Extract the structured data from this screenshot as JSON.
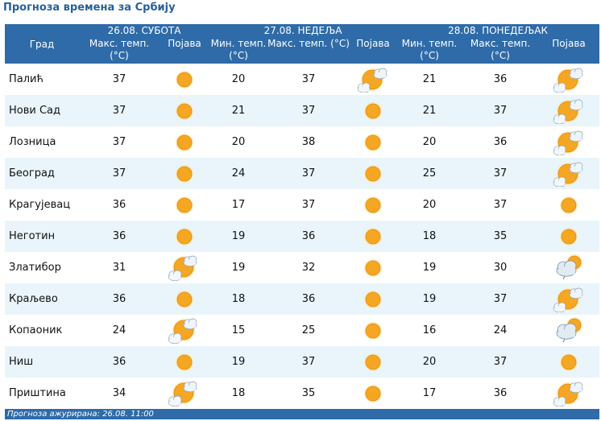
{
  "title": "Прогноза времена за Србију",
  "header": {
    "city_label": "Град",
    "days": [
      {
        "date": "26.08. СУБОТА",
        "cols": [
          "Макс. темп. (°C)",
          "Појава"
        ]
      },
      {
        "date": "27.08. НЕДЕЉА",
        "cols": [
          "Мин. темп. (°C)",
          "Макс. темп. (°C)",
          "Појава"
        ]
      },
      {
        "date": "28.08. ПОНЕДЕЉАК",
        "cols": [
          "Мин. темп. (°C)",
          "Макс. темп. (°C)",
          "Појава"
        ]
      }
    ]
  },
  "rows": [
    {
      "city": "Палић",
      "d1_max": "37",
      "d1_icon": "sun-icon",
      "d2_min": "20",
      "d2_max": "37",
      "d2_icon": "sun-behind-cloud-icon",
      "d3_min": "21",
      "d3_max": "36",
      "d3_icon": "sun-behind-cloud-icon"
    },
    {
      "city": "Нови Сад",
      "d1_max": "37",
      "d1_icon": "sun-icon",
      "d2_min": "21",
      "d2_max": "37",
      "d2_icon": "sun-icon",
      "d3_min": "21",
      "d3_max": "37",
      "d3_icon": "sun-behind-cloud-icon"
    },
    {
      "city": "Лозница",
      "d1_max": "37",
      "d1_icon": "sun-icon",
      "d2_min": "20",
      "d2_max": "38",
      "d2_icon": "sun-icon",
      "d3_min": "20",
      "d3_max": "36",
      "d3_icon": "sun-behind-cloud-icon"
    },
    {
      "city": "Београд",
      "d1_max": "37",
      "d1_icon": "sun-icon",
      "d2_min": "24",
      "d2_max": "37",
      "d2_icon": "sun-icon",
      "d3_min": "25",
      "d3_max": "37",
      "d3_icon": "sun-behind-cloud-icon"
    },
    {
      "city": "Крагујевац",
      "d1_max": "36",
      "d1_icon": "sun-icon",
      "d2_min": "17",
      "d2_max": "37",
      "d2_icon": "sun-icon",
      "d3_min": "20",
      "d3_max": "37",
      "d3_icon": "sun-icon"
    },
    {
      "city": "Неготин",
      "d1_max": "36",
      "d1_icon": "sun-icon",
      "d2_min": "19",
      "d2_max": "36",
      "d2_icon": "sun-icon",
      "d3_min": "18",
      "d3_max": "35",
      "d3_icon": "sun-icon"
    },
    {
      "city": "Златибор",
      "d1_max": "31",
      "d1_icon": "sun-cloud-icon",
      "d2_min": "19",
      "d2_max": "32",
      "d2_icon": "sun-icon",
      "d3_min": "19",
      "d3_max": "30",
      "d3_icon": "cloud-sun-rain-icon"
    },
    {
      "city": "Краљево",
      "d1_max": "36",
      "d1_icon": "sun-icon",
      "d2_min": "18",
      "d2_max": "36",
      "d2_icon": "sun-icon",
      "d3_min": "19",
      "d3_max": "37",
      "d3_icon": "sun-behind-cloud-icon"
    },
    {
      "city": "Копаоник",
      "d1_max": "24",
      "d1_icon": "sun-cloud-icon",
      "d2_min": "15",
      "d2_max": "25",
      "d2_icon": "sun-icon",
      "d3_min": "16",
      "d3_max": "24",
      "d3_icon": "cloud-sun-rain-icon"
    },
    {
      "city": "Ниш",
      "d1_max": "36",
      "d1_icon": "sun-icon",
      "d2_min": "19",
      "d2_max": "37",
      "d2_icon": "sun-icon",
      "d3_min": "20",
      "d3_max": "37",
      "d3_icon": "sun-icon"
    },
    {
      "city": "Приштина",
      "d1_max": "34",
      "d1_icon": "sun-cloud-icon",
      "d2_min": "18",
      "d2_max": "35",
      "d2_icon": "sun-icon",
      "d3_min": "17",
      "d3_max": "36",
      "d3_icon": "sun-behind-cloud-icon"
    }
  ],
  "footer": "Прогноза ажурирана:  26.08.  11:00",
  "colors": {
    "header_bg": "#2e6ba8",
    "title": "#27619c",
    "alt_row": "#e9f5fb",
    "sun": "#f5a623"
  }
}
